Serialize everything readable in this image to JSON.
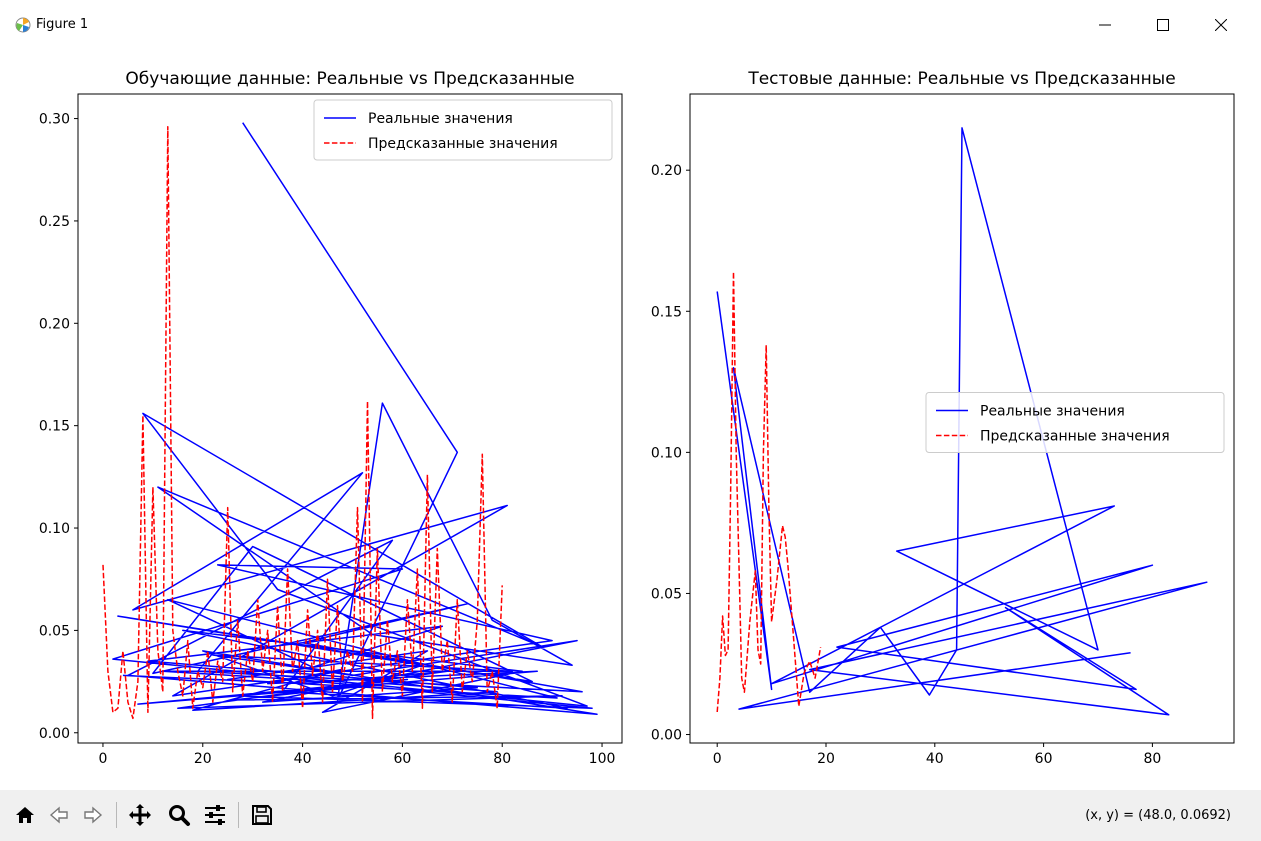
{
  "window": {
    "title": "Figure 1",
    "icon": "matplotlib-icon",
    "controls": [
      "minimize-icon",
      "maximize-icon",
      "close-icon"
    ]
  },
  "toolbar": {
    "buttons": [
      "home-icon",
      "back-icon",
      "forward-icon",
      "pan-icon",
      "zoom-icon",
      "configure-subplots-icon",
      "save-icon"
    ],
    "coords": "(x, y) = (48.0, 0.0692)"
  },
  "chart_data": [
    {
      "type": "line",
      "title": "Обучающие данные: Реальные vs Предсказанные",
      "xlabel": "",
      "ylabel": "",
      "xlim": [
        -5,
        104
      ],
      "ylim": [
        -0.005,
        0.312
      ],
      "xticks": [
        0,
        20,
        40,
        60,
        80,
        100
      ],
      "yticks": [
        0.0,
        0.05,
        0.1,
        0.15,
        0.2,
        0.25,
        0.3
      ],
      "xtick_labels": [
        "0",
        "20",
        "40",
        "60",
        "80",
        "100"
      ],
      "ytick_labels": [
        "0.00",
        "0.05",
        "0.10",
        "0.15",
        "0.20",
        "0.25",
        "0.30"
      ],
      "legend_position": "upper right",
      "grid": false,
      "series": [
        {
          "name": "Реальные значения",
          "color": "#0000ff",
          "style": "solid",
          "x": [
            28,
            71,
            47,
            56,
            78,
            94,
            54,
            11,
            88,
            8,
            35,
            97,
            2,
            60,
            23,
            90,
            14,
            81,
            6,
            52,
            19,
            96,
            40,
            73,
            10,
            30,
            86,
            3,
            64,
            46,
            20,
            99,
            5,
            58,
            36,
            93,
            16,
            84,
            44,
            65,
            25,
            91,
            13,
            42,
            68,
            9,
            75,
            32,
            95,
            50,
            22,
            82,
            12,
            39,
            98,
            27,
            61,
            7,
            87,
            33,
            48,
            18,
            79,
            57,
            26,
            92,
            15,
            69,
            41,
            4
          ],
          "y": [
            0.298,
            0.137,
            0.016,
            0.161,
            0.055,
            0.033,
            0.048,
            0.12,
            0.042,
            0.156,
            0.07,
            0.013,
            0.036,
            0.08,
            0.082,
            0.045,
            0.018,
            0.111,
            0.06,
            0.127,
            0.03,
            0.02,
            0.044,
            0.063,
            0.029,
            0.091,
            0.025,
            0.057,
            0.033,
            0.018,
            0.04,
            0.009,
            0.028,
            0.094,
            0.02,
            0.012,
            0.05,
            0.03,
            0.01,
            0.04,
            0.026,
            0.017,
            0.065,
            0.032,
            0.052,
            0.035,
            0.022,
            0.015,
            0.045,
            0.028,
            0.038,
            0.03,
            0.03,
            0.026,
            0.012,
            0.018,
            0.026,
            0.014,
            0.03,
            0.024,
            0.031,
            0.011,
            0.02,
            0.024,
            0.016,
            0.018,
            0.012,
            0.03,
            0.024,
            0.028
          ]
        },
        {
          "name": "Предсказанные значения",
          "color": "#ff0000",
          "style": "dashed",
          "x": [
            0,
            1,
            2,
            3,
            4,
            5,
            6,
            7,
            8,
            9,
            10,
            11,
            12,
            13,
            14,
            15,
            16,
            17,
            18,
            19,
            20,
            21,
            22,
            23,
            24,
            25,
            26,
            27,
            28,
            29,
            30,
            31,
            32,
            33,
            34,
            35,
            36,
            37,
            38,
            39,
            40,
            41,
            42,
            43,
            44,
            45,
            46,
            47,
            48,
            49,
            50,
            51,
            52,
            53,
            54,
            55,
            56,
            57,
            58,
            59,
            60,
            61,
            62,
            63,
            64,
            65,
            66,
            67,
            68,
            69,
            70,
            71,
            72,
            73,
            74,
            75,
            76,
            77,
            78,
            79,
            80
          ],
          "y": [
            0.082,
            0.03,
            0.01,
            0.012,
            0.04,
            0.015,
            0.007,
            0.025,
            0.155,
            0.01,
            0.12,
            0.04,
            0.02,
            0.296,
            0.05,
            0.03,
            0.018,
            0.045,
            0.012,
            0.03,
            0.022,
            0.04,
            0.015,
            0.035,
            0.025,
            0.11,
            0.02,
            0.055,
            0.018,
            0.04,
            0.025,
            0.065,
            0.03,
            0.05,
            0.015,
            0.062,
            0.02,
            0.08,
            0.03,
            0.045,
            0.012,
            0.06,
            0.028,
            0.05,
            0.015,
            0.075,
            0.02,
            0.062,
            0.025,
            0.04,
            0.03,
            0.11,
            0.015,
            0.162,
            0.007,
            0.09,
            0.02,
            0.055,
            0.025,
            0.04,
            0.018,
            0.065,
            0.03,
            0.08,
            0.012,
            0.126,
            0.02,
            0.09,
            0.03,
            0.045,
            0.015,
            0.065,
            0.02,
            0.04,
            0.025,
            0.055,
            0.136,
            0.02,
            0.03,
            0.012,
            0.072
          ]
        }
      ]
    },
    {
      "type": "line",
      "title": "Тестовые данные: Реальные vs Предсказанные",
      "xlabel": "",
      "ylabel": "",
      "xlim": [
        -5,
        95
      ],
      "ylim": [
        -0.003,
        0.227
      ],
      "xticks": [
        0,
        20,
        40,
        60,
        80
      ],
      "yticks": [
        0.0,
        0.05,
        0.1,
        0.15,
        0.2
      ],
      "xtick_labels": [
        "0",
        "20",
        "40",
        "60",
        "80"
      ],
      "ytick_labels": [
        "0.00",
        "0.05",
        "0.10",
        "0.15",
        "0.20"
      ],
      "legend_position": "center right",
      "grid": false,
      "series": [
        {
          "name": "Реальные значения",
          "color": "#0000ff",
          "style": "solid",
          "x": [
            0,
            10,
            3,
            17,
            30,
            39,
            44,
            45,
            70,
            33,
            73,
            10,
            80,
            22,
            77,
            53,
            83,
            17,
            90,
            4,
            76
          ],
          "y": [
            0.157,
            0.016,
            0.13,
            0.015,
            0.038,
            0.014,
            0.03,
            0.215,
            0.03,
            0.065,
            0.081,
            0.018,
            0.06,
            0.031,
            0.016,
            0.045,
            0.007,
            0.023,
            0.054,
            0.009,
            0.029
          ]
        },
        {
          "name": "Предсказанные значения",
          "color": "#ff0000",
          "style": "dashed",
          "x": [
            0,
            0.5,
            1,
            1.5,
            2,
            2.5,
            3,
            3.5,
            4,
            4.5,
            5,
            6,
            7,
            7.5,
            8,
            8.5,
            9,
            9.5,
            10,
            11,
            12,
            12.5,
            13,
            14,
            15,
            16,
            17,
            18,
            19
          ],
          "y": [
            0.008,
            0.02,
            0.042,
            0.028,
            0.03,
            0.09,
            0.164,
            0.1,
            0.06,
            0.02,
            0.015,
            0.04,
            0.058,
            0.03,
            0.025,
            0.1,
            0.138,
            0.08,
            0.04,
            0.055,
            0.074,
            0.07,
            0.06,
            0.035,
            0.01,
            0.022,
            0.026,
            0.02,
            0.031
          ]
        }
      ]
    }
  ]
}
